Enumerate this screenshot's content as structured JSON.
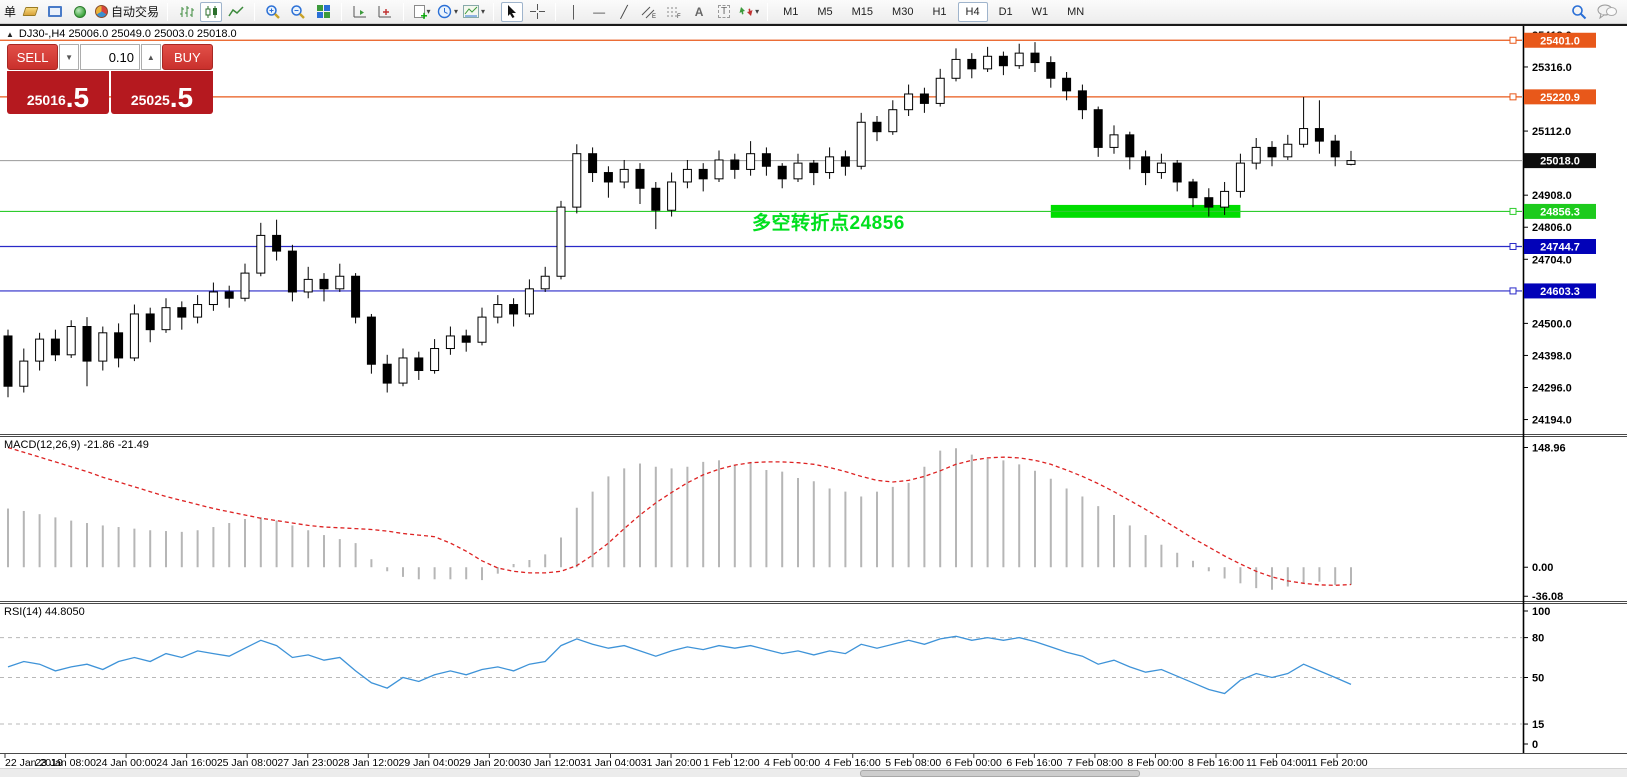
{
  "toolbar": {
    "order_label": "单",
    "auto_trading_label": "自动交易",
    "timeframes": {
      "items": [
        "M1",
        "M5",
        "M15",
        "M30",
        "H1",
        "H4",
        "D1",
        "W1",
        "MN"
      ],
      "active": "H4"
    }
  },
  "chart_header": {
    "collapse_icon": "▲",
    "title": "DJ30-,H4  25006.0 25049.0 25003.0 25018.0"
  },
  "trade_panel": {
    "sell_label": "SELL",
    "buy_label": "BUY",
    "volume": "0.10",
    "sell_price_int": "25016",
    "sell_price_frac": ".5",
    "buy_price_int": "25025",
    "buy_price_frac": ".5"
  },
  "annotation": {
    "text": "多空转折点24856",
    "color": "#00e01e"
  },
  "indicator_labels": {
    "macd": "MACD(12,26,9) -21.86 -21.49",
    "rsi": "RSI(14) 44.8050"
  },
  "price_axis": {
    "tick_labels": [
      "25418.0",
      "25316.0",
      "25112.0",
      "24908.0",
      "24806.0",
      "24704.0",
      "24500.0",
      "24398.0",
      "24296.0",
      "24194.0"
    ],
    "tick_values": [
      25418,
      25316,
      25112,
      24908,
      24806,
      24704,
      24500,
      24398,
      24296,
      24194
    ],
    "badges": [
      {
        "label": "25401.0",
        "value": 25401.0,
        "color": "#e8581a"
      },
      {
        "label": "25220.9",
        "value": 25220.9,
        "color": "#e8581a"
      },
      {
        "label": "25018.0",
        "value": 25018.0,
        "color": "#0d0d0d"
      },
      {
        "label": "24856.3",
        "value": 24856.3,
        "color": "#1dcb1d"
      },
      {
        "label": "24744.7",
        "value": 24744.7,
        "color": "#0202b8"
      },
      {
        "label": "24603.3",
        "value": 24603.3,
        "color": "#0202b8"
      }
    ]
  },
  "macd_axis": {
    "tick_labels": [
      "148.96",
      "0.00",
      "-36.08"
    ],
    "tick_values": [
      148.96,
      0,
      -36.08
    ]
  },
  "rsi_axis": {
    "tick_labels": [
      "100",
      "80",
      "50",
      "15",
      "0"
    ],
    "tick_values": [
      100,
      80,
      50,
      15,
      0
    ],
    "dashed_levels": [
      80,
      50,
      15
    ]
  },
  "time_axis": {
    "labels": [
      "22 Jan 2019",
      "23 Jan 08:00",
      "24 Jan 00:00",
      "24 Jan 16:00",
      "25 Jan 08:00",
      "27 Jan 23:00",
      "28 Jan 12:00",
      "29 Jan 04:00",
      "29 Jan 20:00",
      "30 Jan 12:00",
      "31 Jan 04:00",
      "31 Jan 20:00",
      "1 Feb 12:00",
      "4 Feb 00:00",
      "4 Feb 16:00",
      "5 Feb 08:00",
      "6 Feb 00:00",
      "6 Feb 16:00",
      "7 Feb 08:00",
      "8 Feb 00:00",
      "8 Feb 16:00",
      "11 Feb 04:00",
      "11 Feb 20:00"
    ]
  },
  "chart_data": [
    {
      "type": "candlestick",
      "title": "DJ30-,H4",
      "ohlc_header": {
        "open": 25006.0,
        "high": 25049.0,
        "low": 25003.0,
        "close": 25018.0
      },
      "ylim": [
        24148,
        25440
      ],
      "current_price": 25018.0,
      "levels": [
        {
          "value": 25401.0,
          "color": "#e8581a"
        },
        {
          "value": 25220.9,
          "color": "#e8581a"
        },
        {
          "value": 24856.3,
          "color": "#2ecc2e"
        },
        {
          "value": 24744.7,
          "color": "#2a2ac8"
        },
        {
          "value": 24603.3,
          "color": "#2a2ac8"
        }
      ],
      "highlight_zone": {
        "from_bar": 66,
        "to_bar": 78,
        "price_top": 24877,
        "price_bottom": 24836,
        "color": "#00dd00"
      },
      "candles": [
        [
          24460,
          24480,
          24265,
          24300
        ],
        [
          24300,
          24420,
          24280,
          24380
        ],
        [
          24380,
          24470,
          24350,
          24450
        ],
        [
          24450,
          24480,
          24380,
          24400
        ],
        [
          24400,
          24510,
          24390,
          24490
        ],
        [
          24490,
          24520,
          24300,
          24380
        ],
        [
          24380,
          24490,
          24350,
          24470
        ],
        [
          24470,
          24500,
          24360,
          24390
        ],
        [
          24390,
          24560,
          24380,
          24530
        ],
        [
          24530,
          24550,
          24440,
          24480
        ],
        [
          24480,
          24580,
          24470,
          24550
        ],
        [
          24550,
          24570,
          24480,
          24520
        ],
        [
          24520,
          24590,
          24500,
          24560
        ],
        [
          24560,
          24630,
          24540,
          24600
        ],
        [
          24600,
          24620,
          24550,
          24580
        ],
        [
          24580,
          24690,
          24570,
          24660
        ],
        [
          24660,
          24820,
          24650,
          24780
        ],
        [
          24780,
          24830,
          24700,
          24730
        ],
        [
          24730,
          24750,
          24570,
          24600
        ],
        [
          24600,
          24680,
          24580,
          24640
        ],
        [
          24640,
          24660,
          24570,
          24610
        ],
        [
          24610,
          24690,
          24600,
          24650
        ],
        [
          24650,
          24660,
          24500,
          24520
        ],
        [
          24520,
          24530,
          24340,
          24370
        ],
        [
          24370,
          24400,
          24280,
          24310
        ],
        [
          24310,
          24420,
          24300,
          24390
        ],
        [
          24390,
          24410,
          24320,
          24350
        ],
        [
          24350,
          24450,
          24340,
          24420
        ],
        [
          24420,
          24490,
          24400,
          24460
        ],
        [
          24460,
          24480,
          24410,
          24440
        ],
        [
          24440,
          24550,
          24430,
          24520
        ],
        [
          24520,
          24590,
          24500,
          24560
        ],
        [
          24560,
          24580,
          24490,
          24530
        ],
        [
          24530,
          24640,
          24520,
          24610
        ],
        [
          24610,
          24680,
          24600,
          24650
        ],
        [
          24650,
          24890,
          24640,
          24870
        ],
        [
          24870,
          25070,
          24850,
          25040
        ],
        [
          25040,
          25060,
          24950,
          24980
        ],
        [
          24980,
          25000,
          24900,
          24950
        ],
        [
          24950,
          25020,
          24930,
          24990
        ],
        [
          24990,
          25010,
          24880,
          24930
        ],
        [
          24930,
          24950,
          24800,
          24860
        ],
        [
          24860,
          24980,
          24840,
          24950
        ],
        [
          24950,
          25020,
          24930,
          24990
        ],
        [
          24990,
          25010,
          24920,
          24960
        ],
        [
          24960,
          25050,
          24950,
          25020
        ],
        [
          25020,
          25040,
          24960,
          24990
        ],
        [
          24990,
          25080,
          24970,
          25040
        ],
        [
          25040,
          25060,
          24970,
          25000
        ],
        [
          25000,
          25010,
          24930,
          24960
        ],
        [
          24960,
          25040,
          24950,
          25010
        ],
        [
          25010,
          25020,
          24940,
          24980
        ],
        [
          24980,
          25060,
          24960,
          25030
        ],
        [
          25030,
          25050,
          24970,
          25000
        ],
        [
          25000,
          25170,
          24990,
          25140
        ],
        [
          25140,
          25160,
          25080,
          25110
        ],
        [
          25110,
          25210,
          25100,
          25180
        ],
        [
          25180,
          25260,
          25160,
          25230
        ],
        [
          25230,
          25250,
          25170,
          25200
        ],
        [
          25200,
          25310,
          25190,
          25280
        ],
        [
          25280,
          25375,
          25270,
          25340
        ],
        [
          25340,
          25360,
          25280,
          25310
        ],
        [
          25310,
          25380,
          25300,
          25350
        ],
        [
          25350,
          25365,
          25290,
          25320
        ],
        [
          25320,
          25390,
          25310,
          25360
        ],
        [
          25360,
          25395,
          25300,
          25330
        ],
        [
          25330,
          25350,
          25250,
          25280
        ],
        [
          25280,
          25300,
          25210,
          25240
        ],
        [
          25240,
          25260,
          25150,
          25180
        ],
        [
          25180,
          25190,
          25030,
          25060
        ],
        [
          25060,
          25130,
          25040,
          25100
        ],
        [
          25100,
          25110,
          24990,
          25030
        ],
        [
          25030,
          25050,
          24940,
          24980
        ],
        [
          24980,
          25040,
          24960,
          25010
        ],
        [
          25010,
          25020,
          24920,
          24950
        ],
        [
          24950,
          24960,
          24870,
          24900
        ],
        [
          24900,
          24930,
          24840,
          24870
        ],
        [
          24870,
          24950,
          24845,
          24920
        ],
        [
          24920,
          25040,
          24900,
          25010
        ],
        [
          25010,
          25090,
          24990,
          25060
        ],
        [
          25060,
          25080,
          25000,
          25030
        ],
        [
          25030,
          25100,
          25020,
          25070
        ],
        [
          25070,
          25220,
          25060,
          25120
        ],
        [
          25120,
          25210,
          25040,
          25080
        ],
        [
          25080,
          25100,
          25000,
          25030
        ],
        [
          25006,
          25049,
          25003,
          25018
        ]
      ]
    },
    {
      "type": "bar",
      "name": "MACD",
      "params": "12,26,9",
      "value_main": -21.86,
      "value_signal": -21.49,
      "ylim": [
        -42,
        162
      ],
      "hist_color": "#b6b6b6",
      "signal_color": "#dd2222",
      "hist": [
        73,
        70,
        66,
        62,
        58,
        55,
        52,
        50,
        48,
        46,
        45,
        44,
        46,
        50,
        55,
        60,
        62,
        58,
        52,
        46,
        40,
        35,
        30,
        10,
        -5,
        -12,
        -15,
        -15,
        -15,
        -15,
        -16,
        -8,
        4,
        9,
        16,
        37,
        74,
        94,
        113,
        123,
        129,
        125,
        123,
        125,
        131,
        133,
        127,
        131,
        121,
        119,
        111,
        107,
        98,
        94,
        88,
        94,
        100,
        105,
        125,
        145,
        148,
        140,
        135,
        133,
        128,
        120,
        110,
        98,
        88,
        76,
        65,
        52,
        40,
        28,
        18,
        8,
        -5,
        -14,
        -20,
        -26,
        -28,
        -24,
        -20,
        -18,
        -22,
        -21.86
      ],
      "signal": [
        149,
        143,
        137,
        131,
        125,
        119,
        112,
        106,
        100,
        94,
        88,
        83,
        78,
        73,
        69,
        65,
        61,
        58,
        55,
        52,
        50,
        49,
        48,
        47,
        45,
        42,
        40,
        38,
        30,
        20,
        8,
        -1,
        -5,
        -7,
        -7,
        -5,
        2,
        15,
        30,
        48,
        65,
        80,
        93,
        105,
        115,
        122,
        127,
        130,
        131,
        131,
        130,
        128,
        124,
        119,
        113,
        108,
        106,
        108,
        113,
        120,
        128,
        133,
        136,
        137,
        136,
        133,
        128,
        121,
        113,
        104,
        94,
        83,
        72,
        60,
        48,
        36,
        25,
        14,
        4,
        -5,
        -12,
        -17,
        -20,
        -22,
        -22.5,
        -21.49
      ]
    },
    {
      "type": "line",
      "name": "RSI",
      "params": "14",
      "value": 44.805,
      "ylim": [
        0,
        100
      ],
      "color": "#3e93d8",
      "levels": [
        80,
        50,
        15
      ],
      "values": [
        58,
        62,
        60,
        55,
        58,
        60,
        56,
        62,
        65,
        62,
        68,
        65,
        70,
        68,
        66,
        72,
        78,
        74,
        65,
        67,
        63,
        65,
        55,
        46,
        42,
        50,
        47,
        52,
        55,
        52,
        56,
        58,
        55,
        60,
        62,
        74,
        79,
        75,
        72,
        74,
        70,
        66,
        70,
        73,
        71,
        74,
        72,
        74,
        71,
        68,
        70,
        67,
        70,
        68,
        75,
        72,
        75,
        78,
        75,
        79,
        81,
        78,
        80,
        78,
        80,
        77,
        73,
        69,
        66,
        60,
        63,
        58,
        54,
        56,
        51,
        46,
        41,
        38,
        48,
        53,
        50,
        53,
        60,
        55,
        50,
        44.8
      ]
    }
  ]
}
